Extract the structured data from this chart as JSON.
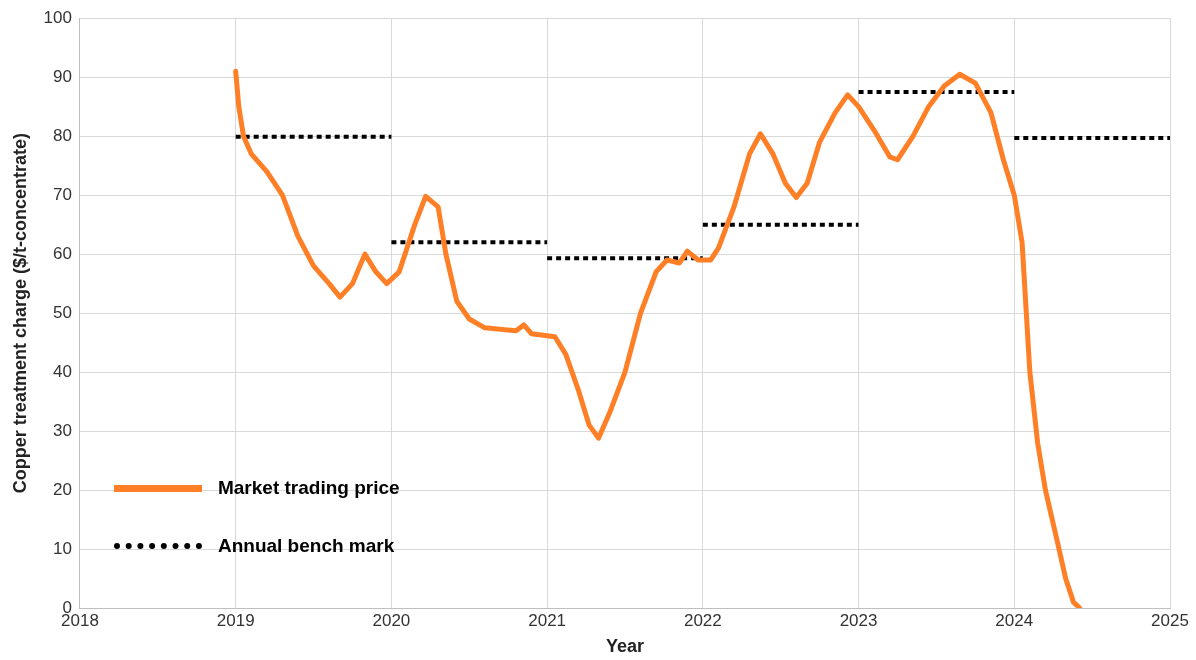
{
  "chart_data": {
    "type": "line",
    "xlabel": "Year",
    "ylabel": "Copper treatment charge ($/t-concentrate)",
    "xlim": [
      2018,
      2025
    ],
    "xticks": [
      2018,
      2019,
      2020,
      2021,
      2022,
      2023,
      2024,
      2025
    ],
    "ylim": [
      0,
      100
    ],
    "yticks": [
      0,
      10,
      20,
      30,
      40,
      50,
      60,
      70,
      80,
      90,
      100
    ],
    "grid": true,
    "legend": "bottom left",
    "marker": "none",
    "series": [
      {
        "name": "Market trading price",
        "color": "#ff7f27",
        "line_style": "solid",
        "x": [
          2019.0,
          2019.02,
          2019.05,
          2019.1,
          2019.2,
          2019.3,
          2019.4,
          2019.5,
          2019.6,
          2019.67,
          2019.75,
          2019.83,
          2019.9,
          2019.97,
          2020.05,
          2020.15,
          2020.22,
          2020.3,
          2020.35,
          2020.42,
          2020.5,
          2020.6,
          2020.8,
          2020.85,
          2020.9,
          2021.05,
          2021.12,
          2021.2,
          2021.27,
          2021.33,
          2021.4,
          2021.5,
          2021.6,
          2021.7,
          2021.77,
          2021.85,
          2021.9,
          2021.97,
          2022.05,
          2022.1,
          2022.2,
          2022.3,
          2022.37,
          2022.45,
          2022.53,
          2022.6,
          2022.67,
          2022.75,
          2022.85,
          2022.93,
          2023.0,
          2023.1,
          2023.2,
          2023.25,
          2023.35,
          2023.45,
          2023.55,
          2023.65,
          2023.75,
          2023.85,
          2023.93,
          2024.0,
          2024.05,
          2024.1,
          2024.15,
          2024.2,
          2024.27,
          2024.33,
          2024.38,
          2024.42
        ],
        "values": [
          91,
          85,
          80,
          77,
          74,
          70,
          63,
          58,
          55,
          52.7,
          55,
          60,
          57,
          55,
          57,
          65,
          69.8,
          68,
          60,
          52,
          49,
          47.5,
          47,
          48,
          46.5,
          46,
          43,
          37,
          31,
          28.8,
          33,
          40,
          50,
          57,
          59,
          58.5,
          60.5,
          59,
          59,
          61,
          68,
          77,
          80.4,
          77,
          72,
          69.6,
          72,
          79,
          84,
          87,
          85,
          81,
          76.5,
          76,
          80,
          85,
          88.5,
          90.5,
          89,
          84,
          76,
          70,
          62,
          40,
          28,
          20,
          12,
          5,
          1,
          0
        ]
      },
      {
        "name": "Annual bench mark",
        "color": "#000000",
        "line_style": "dotted",
        "x": [
          2019,
          2020
        ],
        "values": [
          79.9,
          79.9
        ]
      },
      {
        "color": "#000000",
        "line_style": "dotted",
        "x": [
          2020,
          2021
        ],
        "values": [
          62,
          62
        ]
      },
      {
        "color": "#000000",
        "line_style": "dotted",
        "x": [
          2021,
          2022
        ],
        "values": [
          59.3,
          59.3
        ]
      },
      {
        "color": "#000000",
        "line_style": "dotted",
        "x": [
          2022,
          2023
        ],
        "values": [
          65,
          65
        ]
      },
      {
        "color": "#000000",
        "line_style": "dotted",
        "x": [
          2023,
          2024
        ],
        "values": [
          87.5,
          87.5
        ]
      },
      {
        "color": "#000000",
        "line_style": "dotted",
        "x": [
          2024,
          2025
        ],
        "values": [
          79.7,
          79.7
        ]
      }
    ]
  }
}
